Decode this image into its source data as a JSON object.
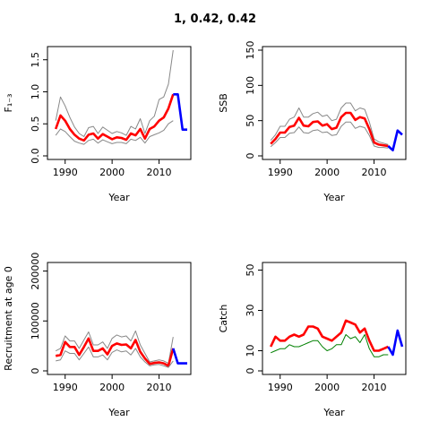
{
  "figure_title": "1, 0.42, 0.42",
  "chart_data": [
    {
      "type": "line",
      "panel": "top-left",
      "xlabel": "Year",
      "ylabel": "F₁₋₃",
      "xlim": [
        1987,
        2016
      ],
      "ylim": [
        0,
        1.65
      ],
      "xticks": [
        1990,
        2000,
        2010
      ],
      "yticks": [
        0.0,
        0.5,
        1.0,
        1.5
      ],
      "ytick_labels": [
        "0.0",
        "0.5",
        "1.0",
        "1.5"
      ],
      "x": [
        1988,
        1989,
        1990,
        1991,
        1992,
        1993,
        1994,
        1995,
        1996,
        1997,
        1998,
        1999,
        2000,
        2001,
        2002,
        2003,
        2004,
        2005,
        2006,
        2007,
        2008,
        2009,
        2010,
        2011,
        2012,
        2013
      ],
      "series": [
        {
          "role": "upper",
          "color": "#888888",
          "values": [
            0.55,
            0.92,
            0.78,
            0.6,
            0.45,
            0.35,
            0.3,
            0.44,
            0.46,
            0.35,
            0.45,
            0.4,
            0.35,
            0.38,
            0.36,
            0.32,
            0.46,
            0.42,
            0.58,
            0.35,
            0.55,
            0.62,
            0.88,
            0.92,
            1.12,
            1.65
          ]
        },
        {
          "role": "estimate",
          "color": "#ff0000",
          "values": [
            0.42,
            0.63,
            0.55,
            0.42,
            0.33,
            0.27,
            0.24,
            0.33,
            0.35,
            0.27,
            0.34,
            0.3,
            0.26,
            0.29,
            0.28,
            0.25,
            0.35,
            0.32,
            0.42,
            0.27,
            0.42,
            0.46,
            0.55,
            0.6,
            0.74,
            0.96
          ]
        },
        {
          "role": "lower",
          "color": "#888888",
          "values": [
            0.32,
            0.42,
            0.38,
            0.3,
            0.23,
            0.2,
            0.18,
            0.24,
            0.26,
            0.2,
            0.25,
            0.22,
            0.19,
            0.21,
            0.21,
            0.19,
            0.26,
            0.24,
            0.29,
            0.2,
            0.3,
            0.33,
            0.36,
            0.4,
            0.5,
            0.55
          ]
        },
        {
          "role": "projection",
          "color": "#0000ff",
          "x": [
            2013,
            2014,
            2015,
            2016
          ],
          "values": [
            0.96,
            0.96,
            0.41,
            0.41
          ]
        }
      ]
    },
    {
      "type": "line",
      "panel": "top-right",
      "xlabel": "Year",
      "ylabel": "SSB",
      "xlim": [
        1987,
        2016
      ],
      "ylim": [
        0,
        150
      ],
      "xticks": [
        1990,
        2000,
        2010
      ],
      "yticks": [
        0,
        50,
        100,
        150
      ],
      "ytick_labels": [
        "0",
        "50",
        "100",
        "150"
      ],
      "x": [
        1988,
        1989,
        1990,
        1991,
        1992,
        1993,
        1994,
        1995,
        1996,
        1997,
        1998,
        1999,
        2000,
        2001,
        2002,
        2003,
        2004,
        2005,
        2006,
        2007,
        2008,
        2009,
        2010,
        2011,
        2012,
        2013
      ],
      "series": [
        {
          "role": "upper",
          "color": "#888888",
          "values": [
            22,
            30,
            42,
            42,
            52,
            55,
            68,
            55,
            55,
            60,
            62,
            56,
            58,
            50,
            52,
            68,
            75,
            75,
            64,
            68,
            66,
            48,
            24,
            20,
            18,
            16
          ]
        },
        {
          "role": "estimate",
          "color": "#ff0000",
          "values": [
            17,
            24,
            33,
            33,
            41,
            43,
            54,
            43,
            42,
            48,
            49,
            43,
            45,
            38,
            40,
            55,
            61,
            61,
            51,
            55,
            53,
            38,
            19,
            16,
            15,
            14
          ]
        },
        {
          "role": "lower",
          "color": "#888888",
          "values": [
            13,
            19,
            26,
            26,
            32,
            33,
            41,
            33,
            32,
            36,
            37,
            33,
            34,
            29,
            30,
            42,
            48,
            48,
            39,
            42,
            40,
            29,
            14,
            12,
            12,
            11
          ]
        },
        {
          "role": "projection",
          "color": "#0000ff",
          "x": [
            2013,
            2014,
            2015,
            2016
          ],
          "values": [
            14,
            8,
            36,
            30
          ]
        }
      ]
    },
    {
      "type": "line",
      "panel": "bottom-left",
      "xlabel": "Year",
      "ylabel": "Recruitment at age 0",
      "xlim": [
        1987,
        2016
      ],
      "ylim": [
        0,
        210000
      ],
      "xticks": [
        1990,
        2000,
        2010
      ],
      "yticks": [
        0,
        100000,
        200000
      ],
      "ytick_labels": [
        "0",
        "100000",
        "200000"
      ],
      "x": [
        1988,
        1989,
        1990,
        1991,
        1992,
        1993,
        1994,
        1995,
        1996,
        1997,
        1998,
        1999,
        2000,
        2001,
        2002,
        2003,
        2004,
        2005,
        2006,
        2007,
        2008,
        2009,
        2010,
        2011,
        2012,
        2013
      ],
      "series": [
        {
          "role": "upper",
          "color": "#888888",
          "values": [
            40000,
            45000,
            70000,
            60000,
            60000,
            45000,
            62000,
            78000,
            52000,
            52000,
            58000,
            45000,
            65000,
            72000,
            68000,
            70000,
            60000,
            80000,
            52000,
            35000,
            18000,
            20000,
            22000,
            20000,
            15000,
            68000
          ]
        },
        {
          "role": "estimate",
          "color": "#ff0000",
          "values": [
            30000,
            32000,
            58000,
            48000,
            48000,
            32000,
            48000,
            65000,
            40000,
            40000,
            45000,
            33000,
            50000,
            55000,
            52000,
            53000,
            45000,
            62000,
            38000,
            25000,
            14000,
            16000,
            17000,
            15000,
            10000,
            45000
          ]
        },
        {
          "role": "lower",
          "color": "#888888",
          "values": [
            20000,
            22000,
            40000,
            35000,
            35000,
            22000,
            35000,
            48000,
            28000,
            28000,
            32000,
            22000,
            37000,
            42000,
            38000,
            40000,
            32000,
            45000,
            28000,
            18000,
            10000,
            12000,
            13000,
            10000,
            7000,
            20000
          ]
        },
        {
          "role": "projection",
          "color": "#0000ff",
          "x": [
            2013,
            2014,
            2015,
            2016
          ],
          "values": [
            45000,
            15000,
            15000,
            15000
          ]
        }
      ]
    },
    {
      "type": "line",
      "panel": "bottom-right",
      "xlabel": "Year",
      "ylabel": "Catch",
      "xlim": [
        1987,
        2016
      ],
      "ylim": [
        0,
        52
      ],
      "xticks": [
        1990,
        2000,
        2010
      ],
      "yticks": [
        0,
        10,
        30,
        50
      ],
      "ytick_labels": [
        "0",
        "10",
        "30",
        "50"
      ],
      "x": [
        1988,
        1989,
        1990,
        1991,
        1992,
        1993,
        1994,
        1995,
        1996,
        1997,
        1998,
        1999,
        2000,
        2001,
        2002,
        2003,
        2004,
        2005,
        2006,
        2007,
        2008,
        2009,
        2010,
        2011,
        2012,
        2013
      ],
      "series": [
        {
          "role": "estimate",
          "color": "#ff0000",
          "values": [
            12,
            17,
            15,
            15,
            17,
            18,
            17,
            18,
            22,
            22,
            21,
            17,
            16,
            15,
            17,
            19,
            25,
            24,
            23,
            19,
            21,
            15,
            10,
            10,
            11,
            12
          ]
        },
        {
          "role": "observed",
          "color": "#008000",
          "values": [
            9,
            10,
            11,
            11,
            13,
            12,
            12,
            13,
            14,
            15,
            15,
            12,
            10,
            11,
            13,
            13,
            18,
            16,
            17,
            14,
            18,
            11,
            7,
            7,
            8,
            8
          ]
        },
        {
          "role": "projection",
          "color": "#0000ff",
          "x": [
            2013,
            2014,
            2015,
            2016
          ],
          "values": [
            12,
            8,
            20,
            12
          ]
        }
      ]
    }
  ]
}
